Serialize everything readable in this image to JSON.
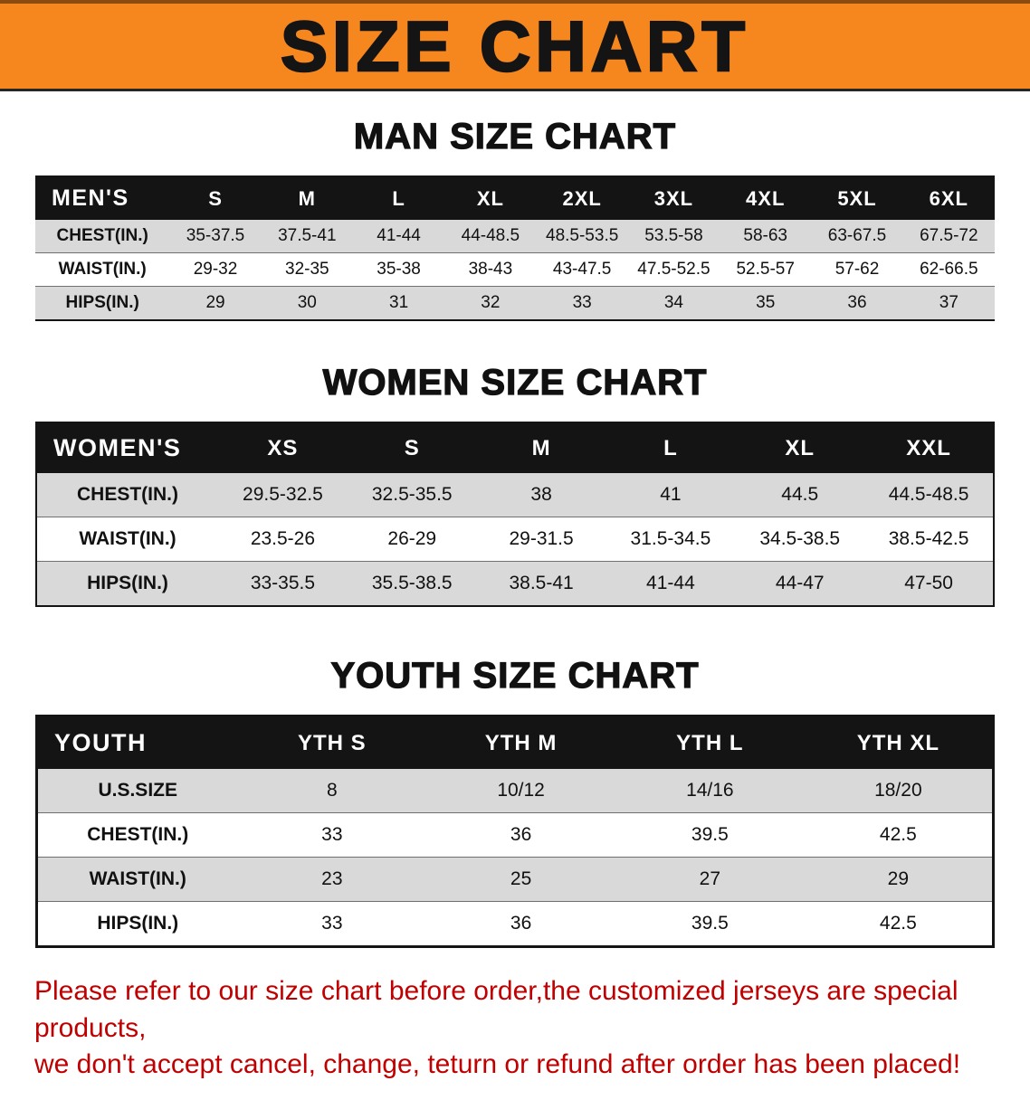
{
  "banner": {
    "title": "SIZE CHART",
    "bg_color": "#f6871f",
    "text_color": "#141414"
  },
  "sections": [
    {
      "key": "men",
      "heading": "MAN SIZE CHART",
      "header": [
        "MEN'S",
        "S",
        "M",
        "L",
        "XL",
        "2XL",
        "3XL",
        "4XL",
        "5XL",
        "6XL"
      ],
      "rows": [
        {
          "label": "CHEST(IN.)",
          "values": [
            "35-37.5",
            "37.5-41",
            "41-44",
            "44-48.5",
            "48.5-53.5",
            "53.5-58",
            "58-63",
            "63-67.5",
            "67.5-72"
          ]
        },
        {
          "label": "WAIST(IN.)",
          "values": [
            "29-32",
            "32-35",
            "35-38",
            "38-43",
            "43-47.5",
            "47.5-52.5",
            "52.5-57",
            "57-62",
            "62-66.5"
          ]
        },
        {
          "label": "HIPS(IN.)",
          "values": [
            "29",
            "30",
            "31",
            "32",
            "33",
            "34",
            "35",
            "36",
            "37"
          ]
        }
      ]
    },
    {
      "key": "women",
      "heading": "WOMEN SIZE CHART",
      "header": [
        "WOMEN'S",
        "XS",
        "S",
        "M",
        "L",
        "XL",
        "XXL"
      ],
      "rows": [
        {
          "label": "CHEST(IN.)",
          "values": [
            "29.5-32.5",
            "32.5-35.5",
            "38",
            "41",
            "44.5",
            "44.5-48.5"
          ]
        },
        {
          "label": "WAIST(IN.)",
          "values": [
            "23.5-26",
            "26-29",
            "29-31.5",
            "31.5-34.5",
            "34.5-38.5",
            "38.5-42.5"
          ]
        },
        {
          "label": "HIPS(IN.)",
          "values": [
            "33-35.5",
            "35.5-38.5",
            "38.5-41",
            "41-44",
            "44-47",
            "47-50"
          ]
        }
      ]
    },
    {
      "key": "youth",
      "heading": "YOUTH SIZE CHART",
      "header": [
        "YOUTH",
        "YTH S",
        "YTH M",
        "YTH L",
        "YTH XL"
      ],
      "rows": [
        {
          "label": "U.S.SIZE",
          "values": [
            "8",
            "10/12",
            "14/16",
            "18/20"
          ]
        },
        {
          "label": "CHEST(IN.)",
          "values": [
            "33",
            "36",
            "39.5",
            "42.5"
          ]
        },
        {
          "label": "WAIST(IN.)",
          "values": [
            "23",
            "25",
            "27",
            "29"
          ]
        },
        {
          "label": "HIPS(IN.)",
          "values": [
            "33",
            "36",
            "39.5",
            "42.5"
          ]
        }
      ]
    }
  ],
  "footer": {
    "line1": "Please refer to our size chart before order,the customized jerseys are special products,",
    "line2": "we don't accept cancel, change, teturn or refund after order has been placed!",
    "text_color": "#c00000"
  }
}
